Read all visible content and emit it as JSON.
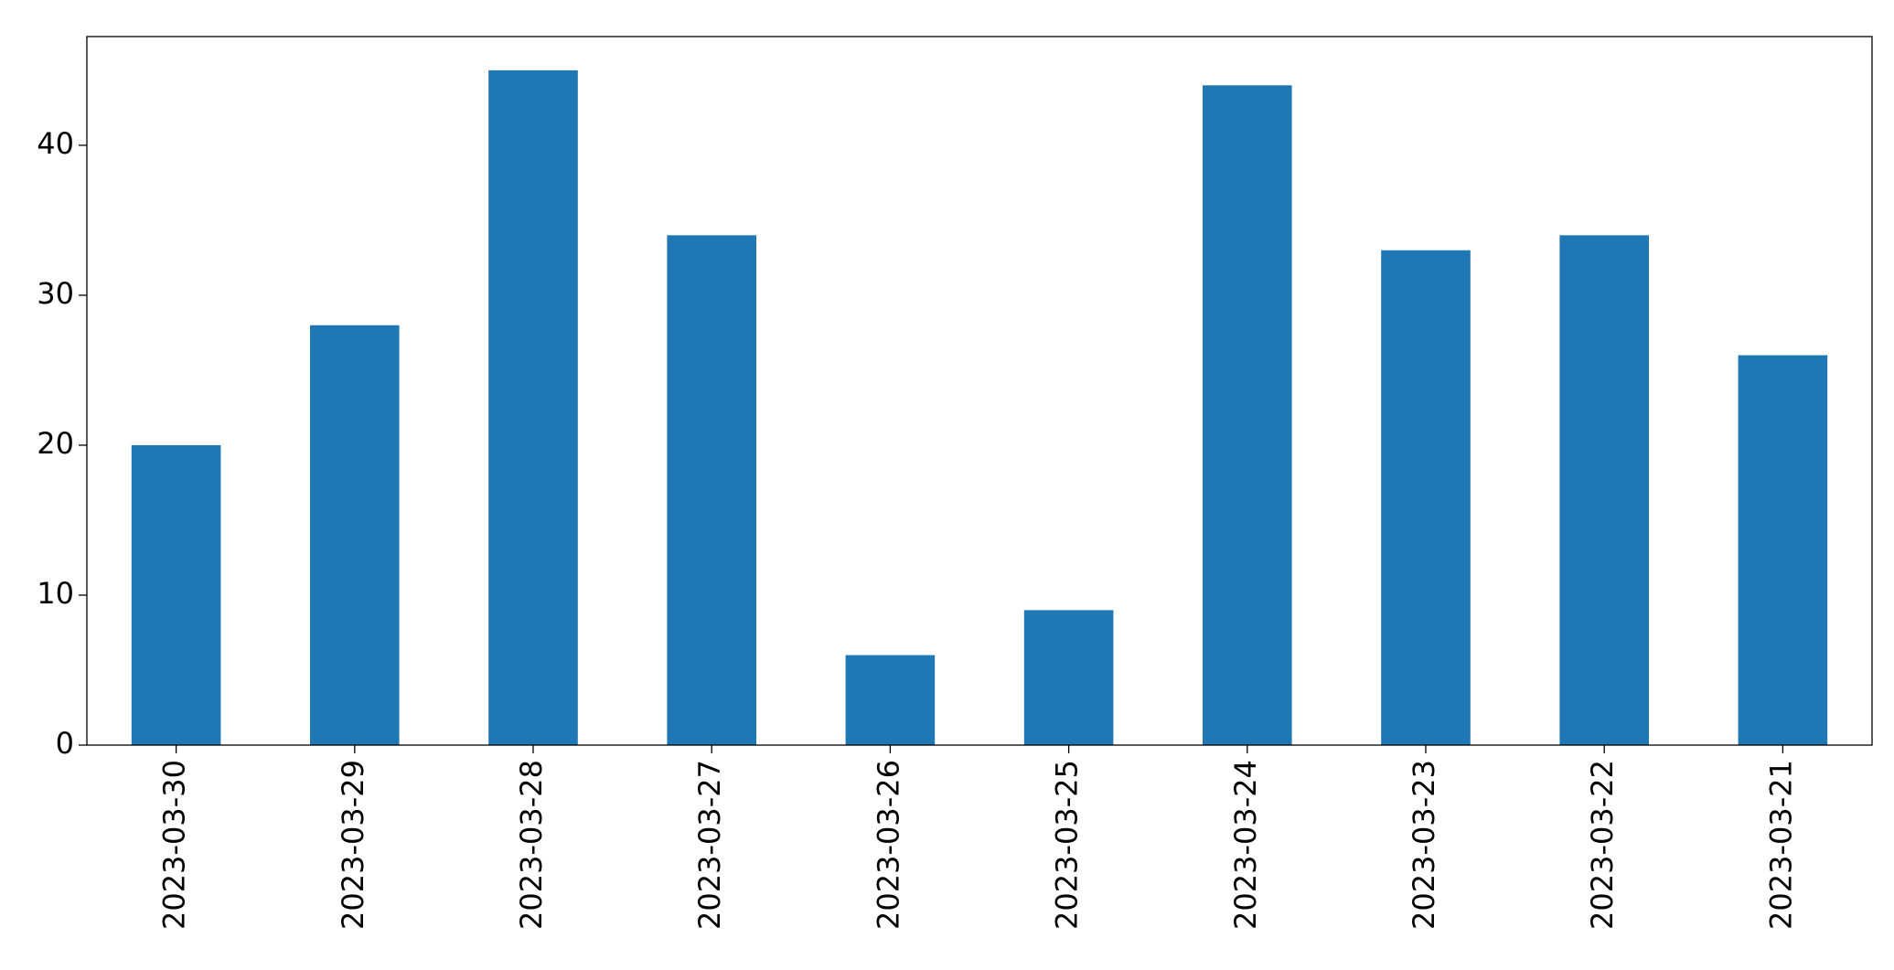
{
  "chart_data": {
    "type": "bar",
    "categories": [
      "2023-03-30",
      "2023-03-29",
      "2023-03-28",
      "2023-03-27",
      "2023-03-26",
      "2023-03-25",
      "2023-03-24",
      "2023-03-23",
      "2023-03-22",
      "2023-03-21"
    ],
    "values": [
      20,
      28,
      45,
      34,
      6,
      9,
      44,
      33,
      34,
      26
    ],
    "color": "#1f77b4",
    "ylim": [
      0,
      47.25
    ],
    "yticks": [
      0,
      10,
      20,
      30,
      40
    ],
    "grid": false
  }
}
